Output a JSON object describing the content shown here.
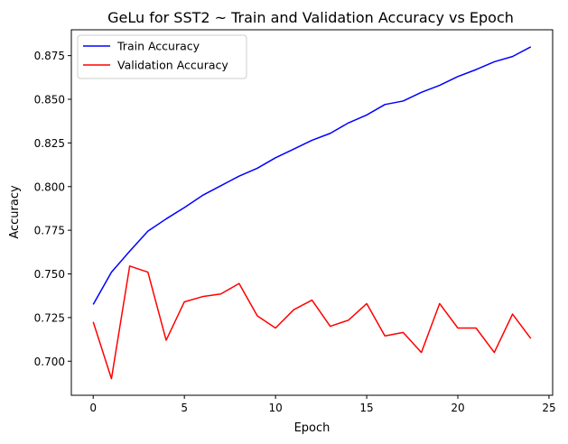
{
  "chart_data": {
    "type": "line",
    "title": "GeLu for SST2 ~ Train and Validation Accuracy vs Epoch",
    "xlabel": "Epoch",
    "ylabel": "Accuracy",
    "xlim": [
      -1.2,
      25.2
    ],
    "ylim": [
      0.6805,
      0.8898
    ],
    "xticks": [
      0,
      5,
      10,
      15,
      20,
      25
    ],
    "yticks": [
      0.7,
      0.725,
      0.75,
      0.775,
      0.8,
      0.825,
      0.85,
      0.875
    ],
    "x": [
      0,
      1,
      2,
      3,
      4,
      5,
      6,
      7,
      8,
      9,
      10,
      11,
      12,
      13,
      14,
      15,
      16,
      17,
      18,
      19,
      20,
      21,
      22,
      23,
      24
    ],
    "legend_position": "top-left",
    "grid": false,
    "series": [
      {
        "name": "Train Accuracy",
        "color": "#0000ff",
        "values": [
          0.7325,
          0.751,
          0.763,
          0.7745,
          0.7815,
          0.788,
          0.795,
          0.8005,
          0.806,
          0.8105,
          0.8165,
          0.8215,
          0.8265,
          0.8305,
          0.8365,
          0.841,
          0.847,
          0.849,
          0.854,
          0.858,
          0.863,
          0.867,
          0.8715,
          0.8745,
          0.88
        ]
      },
      {
        "name": "Validation Accuracy",
        "color": "#ff0000",
        "values": [
          0.7225,
          0.69,
          0.7545,
          0.751,
          0.712,
          0.734,
          0.737,
          0.7385,
          0.7445,
          0.726,
          0.719,
          0.7295,
          0.735,
          0.72,
          0.7235,
          0.733,
          0.7145,
          0.7165,
          0.705,
          0.733,
          0.719,
          0.719,
          0.705,
          0.727,
          0.713
        ]
      }
    ]
  }
}
